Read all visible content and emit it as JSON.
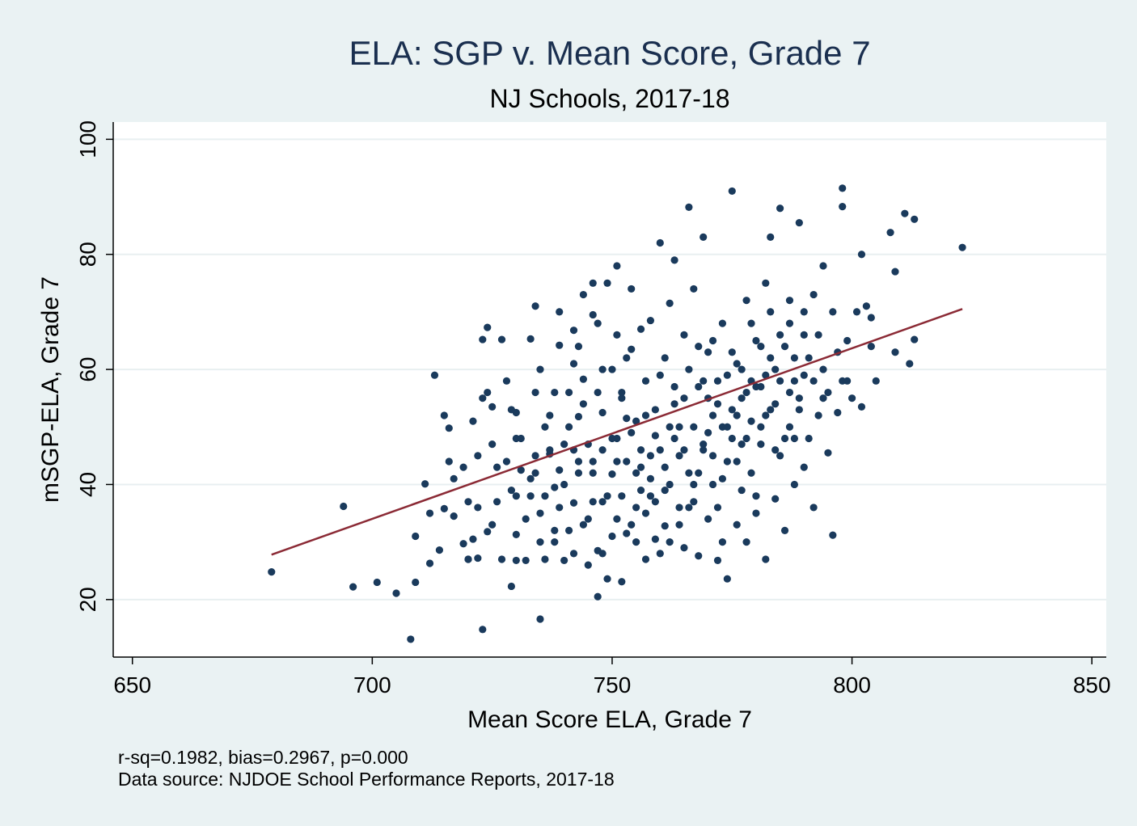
{
  "chart_data": {
    "type": "scatter",
    "title": "ELA: SGP v. Mean Score, Grade 7",
    "subtitle": "NJ Schools, 2017-18",
    "xlabel": "Mean Score ELA, Grade 7",
    "ylabel": "mSGP-ELA, Grade 7",
    "xlim": [
      646,
      853
    ],
    "ylim": [
      10,
      103
    ],
    "xticks": [
      650,
      700,
      750,
      800,
      850
    ],
    "yticks": [
      20,
      40,
      60,
      80,
      100
    ],
    "grid": "horizontal",
    "notes": [
      "r-sq=0.1982, bias=0.2967, p=0.000",
      "Data source: NJDOE School Performance Reports, 2017-18"
    ],
    "fit_line": {
      "x": [
        679,
        823
      ],
      "y": [
        27.8,
        70.5
      ],
      "color": "#8b2a35"
    },
    "marker_color": "#1a3a5c",
    "points": [
      [
        679,
        24.8
      ],
      [
        694,
        36.2
      ],
      [
        696,
        22.2
      ],
      [
        701,
        23.0
      ],
      [
        705,
        21.1
      ],
      [
        708,
        13.1
      ],
      [
        709,
        31.0
      ],
      [
        709,
        23.0
      ],
      [
        711,
        40.1
      ],
      [
        712,
        26.3
      ],
      [
        712,
        35.0
      ],
      [
        713,
        59.0
      ],
      [
        714,
        28.6
      ],
      [
        715,
        35.8
      ],
      [
        715,
        52.0
      ],
      [
        716,
        49.8
      ],
      [
        716,
        44.0
      ],
      [
        717,
        34.5
      ],
      [
        717,
        41.0
      ],
      [
        719,
        29.7
      ],
      [
        719,
        43.0
      ],
      [
        720,
        27.0
      ],
      [
        720,
        37.0
      ],
      [
        721,
        30.5
      ],
      [
        721,
        51.0
      ],
      [
        722,
        27.2
      ],
      [
        722,
        45.0
      ],
      [
        722,
        36.0
      ],
      [
        723,
        14.8
      ],
      [
        723,
        65.2
      ],
      [
        723,
        55.0
      ],
      [
        724,
        67.3
      ],
      [
        724,
        31.8
      ],
      [
        725,
        47.0
      ],
      [
        725,
        53.5
      ],
      [
        726,
        43.0
      ],
      [
        727,
        27.0
      ],
      [
        727,
        65.2
      ],
      [
        728,
        58.0
      ],
      [
        729,
        22.3
      ],
      [
        729,
        39.0
      ],
      [
        730,
        26.8
      ],
      [
        730,
        31.3
      ],
      [
        730,
        48.0
      ],
      [
        730,
        52.5
      ],
      [
        731,
        42.5
      ],
      [
        732,
        26.8
      ],
      [
        733,
        41.0
      ],
      [
        733,
        65.3
      ],
      [
        734,
        71.0
      ],
      [
        734,
        45.0
      ],
      [
        735,
        16.6
      ],
      [
        735,
        35.0
      ],
      [
        735,
        60.0
      ],
      [
        736,
        27.0
      ],
      [
        736,
        38.0
      ],
      [
        737,
        45.3
      ],
      [
        737,
        52.0
      ],
      [
        738,
        30.0
      ],
      [
        738,
        39.5
      ],
      [
        739,
        42.5
      ],
      [
        739,
        64.2
      ],
      [
        740,
        26.8
      ],
      [
        740,
        47.0
      ],
      [
        741,
        32.0
      ],
      [
        741,
        56.0
      ],
      [
        742,
        36.8
      ],
      [
        742,
        66.8
      ],
      [
        743,
        44.0
      ],
      [
        743,
        51.8
      ],
      [
        744,
        73.0
      ],
      [
        744,
        58.3
      ],
      [
        745,
        34.0
      ],
      [
        745,
        26.0
      ],
      [
        746,
        75.0
      ],
      [
        746,
        69.5
      ],
      [
        746,
        42.0
      ],
      [
        747,
        28.5
      ],
      [
        747,
        20.5
      ],
      [
        748,
        37.0
      ],
      [
        748,
        52.5
      ],
      [
        749,
        23.6
      ],
      [
        749,
        75.0
      ],
      [
        750,
        41.8
      ],
      [
        750,
        60.0
      ],
      [
        751,
        34.0
      ],
      [
        751,
        78.0
      ],
      [
        751,
        48.0
      ],
      [
        752,
        23.1
      ],
      [
        752,
        55.0
      ],
      [
        753,
        31.5
      ],
      [
        753,
        44.0
      ],
      [
        754,
        74.0
      ],
      [
        754,
        63.5
      ],
      [
        755,
        36.0
      ],
      [
        755,
        51.0
      ],
      [
        756,
        67.0
      ],
      [
        756,
        43.0
      ],
      [
        757,
        27.0
      ],
      [
        757,
        58.0
      ],
      [
        758,
        38.0
      ],
      [
        758,
        68.5
      ],
      [
        759,
        30.5
      ],
      [
        759,
        48.5
      ],
      [
        760,
        46.0
      ],
      [
        760,
        82.0
      ],
      [
        761,
        32.8
      ],
      [
        761,
        62.0
      ],
      [
        762,
        40.0
      ],
      [
        762,
        71.5
      ],
      [
        763,
        79.0
      ],
      [
        763,
        54.0
      ],
      [
        764,
        36.0
      ],
      [
        764,
        45.0
      ],
      [
        765,
        29.0
      ],
      [
        765,
        66.0
      ],
      [
        766,
        88.2
      ],
      [
        766,
        42.0
      ],
      [
        767,
        50.0
      ],
      [
        767,
        37.0
      ],
      [
        768,
        27.6
      ],
      [
        768,
        57.0
      ],
      [
        769,
        83.0
      ],
      [
        769,
        46.0
      ],
      [
        770,
        34.0
      ],
      [
        770,
        63.0
      ],
      [
        771,
        40.0
      ],
      [
        771,
        52.0
      ],
      [
        772,
        26.8
      ],
      [
        772,
        58.0
      ],
      [
        773,
        30.0
      ],
      [
        773,
        68.0
      ],
      [
        774,
        23.6
      ],
      [
        774,
        44.0
      ],
      [
        775,
        91.0
      ],
      [
        775,
        48.0
      ],
      [
        776,
        33.0
      ],
      [
        776,
        61.0
      ],
      [
        777,
        55.0
      ],
      [
        777,
        39.0
      ],
      [
        778,
        72.0
      ],
      [
        778,
        30.0
      ],
      [
        779,
        51.0
      ],
      [
        779,
        42.0
      ],
      [
        780,
        65.0
      ],
      [
        780,
        35.0
      ],
      [
        781,
        57.0
      ],
      [
        781,
        47.0
      ],
      [
        782,
        75.0
      ],
      [
        782,
        27.0
      ],
      [
        783,
        83.0
      ],
      [
        783,
        53.0
      ],
      [
        784,
        37.5
      ],
      [
        784,
        60.0
      ],
      [
        785,
        88.0
      ],
      [
        785,
        45.0
      ],
      [
        786,
        64.0
      ],
      [
        786,
        32.0
      ],
      [
        787,
        68.0
      ],
      [
        787,
        50.0
      ],
      [
        788,
        40.0
      ],
      [
        788,
        58.0
      ],
      [
        789,
        85.5
      ],
      [
        789,
        55.0
      ],
      [
        790,
        70.0
      ],
      [
        790,
        43.0
      ],
      [
        791,
        62.0
      ],
      [
        791,
        48.0
      ],
      [
        792,
        73.0
      ],
      [
        792,
        36.0
      ],
      [
        793,
        66.0
      ],
      [
        793,
        52.0
      ],
      [
        794,
        78.0
      ],
      [
        794,
        60.0
      ],
      [
        795,
        45.5
      ],
      [
        795,
        56.0
      ],
      [
        796,
        31.2
      ],
      [
        796,
        70.0
      ],
      [
        797,
        63.0
      ],
      [
        797,
        52.5
      ],
      [
        798,
        91.5
      ],
      [
        798,
        88.3
      ],
      [
        799,
        58.0
      ],
      [
        799,
        65.0
      ],
      [
        800,
        55.0
      ],
      [
        801,
        70.0
      ],
      [
        802,
        80.0
      ],
      [
        802,
        53.5
      ],
      [
        803,
        71.0
      ],
      [
        804,
        64.0
      ],
      [
        804,
        69.0
      ],
      [
        805,
        58.0
      ],
      [
        808,
        83.8
      ],
      [
        809,
        63.0
      ],
      [
        809,
        77.0
      ],
      [
        811,
        87.1
      ],
      [
        812,
        61.0
      ],
      [
        813,
        86.1
      ],
      [
        813,
        65.2
      ],
      [
        823,
        81.2
      ],
      [
        742,
        61.0
      ],
      [
        748,
        46.0
      ],
      [
        752,
        56.0
      ],
      [
        756,
        39.0
      ],
      [
        760,
        59.0
      ],
      [
        764,
        50.0
      ],
      [
        768,
        64.0
      ],
      [
        772,
        36.0
      ],
      [
        776,
        52.0
      ],
      [
        780,
        57.0
      ],
      [
        784,
        46.0
      ],
      [
        788,
        62.0
      ],
      [
        744,
        33.0
      ],
      [
        748,
        28.0
      ],
      [
        753,
        51.5
      ],
      [
        757,
        35.0
      ],
      [
        761,
        43.0
      ],
      [
        765,
        55.0
      ],
      [
        769,
        47.0
      ],
      [
        773,
        41.0
      ],
      [
        777,
        60.0
      ],
      [
        781,
        50.0
      ],
      [
        785,
        66.0
      ],
      [
        789,
        53.0
      ],
      [
        732,
        34.0
      ],
      [
        736,
        50.0
      ],
      [
        740,
        40.0
      ],
      [
        744,
        54.0
      ],
      [
        748,
        60.0
      ],
      [
        752,
        38.0
      ],
      [
        756,
        46.0
      ],
      [
        760,
        28.0
      ],
      [
        764,
        33.0
      ],
      [
        768,
        42.0
      ],
      [
        772,
        54.0
      ],
      [
        776,
        44.0
      ],
      [
        780,
        38.0
      ],
      [
        784,
        54.0
      ],
      [
        788,
        48.0
      ],
      [
        792,
        58.0
      ],
      [
        728,
        44.0
      ],
      [
        733,
        38.0
      ],
      [
        737,
        46.0
      ],
      [
        741,
        50.0
      ],
      [
        745,
        47.0
      ],
      [
        749,
        38.0
      ],
      [
        753,
        62.0
      ],
      [
        757,
        52.0
      ],
      [
        761,
        39.0
      ],
      [
        765,
        46.0
      ],
      [
        769,
        58.0
      ],
      [
        773,
        50.0
      ],
      [
        777,
        47.0
      ],
      [
        781,
        64.0
      ],
      [
        785,
        58.0
      ],
      [
        790,
        66.0
      ],
      [
        726,
        37.0
      ],
      [
        731,
        48.0
      ],
      [
        735,
        30.0
      ],
      [
        739,
        36.0
      ],
      [
        743,
        42.0
      ],
      [
        747,
        56.0
      ],
      [
        751,
        44.0
      ],
      [
        755,
        30.0
      ],
      [
        759,
        53.0
      ],
      [
        763,
        48.0
      ],
      [
        767,
        40.0
      ],
      [
        771,
        45.0
      ],
      [
        775,
        63.0
      ],
      [
        779,
        58.0
      ],
      [
        783,
        62.0
      ],
      [
        787,
        56.0
      ],
      [
        738,
        56.0
      ],
      [
        742,
        28.0
      ],
      [
        746,
        44.0
      ],
      [
        750,
        48.0
      ],
      [
        754,
        33.0
      ],
      [
        758,
        41.0
      ],
      [
        762,
        50.0
      ],
      [
        766,
        36.0
      ],
      [
        770,
        55.0
      ],
      [
        774,
        59.0
      ],
      [
        778,
        48.0
      ],
      [
        782,
        59.0
      ],
      [
        786,
        48.0
      ],
      [
        790,
        59.0
      ],
      [
        794,
        55.0
      ],
      [
        798,
        58.0
      ],
      [
        724,
        56.0
      ],
      [
        729,
        53.0
      ],
      [
        734,
        56.0
      ],
      [
        739,
        70.0
      ],
      [
        743,
        64.0
      ],
      [
        747,
        68.0
      ],
      [
        751,
        66.0
      ],
      [
        755,
        42.0
      ],
      [
        759,
        37.0
      ],
      [
        763,
        57.0
      ],
      [
        767,
        74.0
      ],
      [
        771,
        65.0
      ],
      [
        775,
        53.0
      ],
      [
        779,
        68.0
      ],
      [
        783,
        70.0
      ],
      [
        787,
        72.0
      ],
      [
        720,
        27.0
      ],
      [
        725,
        33.0
      ],
      [
        730,
        38.0
      ],
      [
        734,
        42.0
      ],
      [
        738,
        32.0
      ],
      [
        742,
        46.0
      ],
      [
        746,
        37.0
      ],
      [
        750,
        31.0
      ],
      [
        754,
        49.0
      ],
      [
        758,
        45.0
      ],
      [
        762,
        30.0
      ],
      [
        766,
        60.0
      ],
      [
        770,
        49.0
      ],
      [
        774,
        50.0
      ],
      [
        778,
        56.0
      ],
      [
        782,
        52.0
      ]
    ]
  }
}
